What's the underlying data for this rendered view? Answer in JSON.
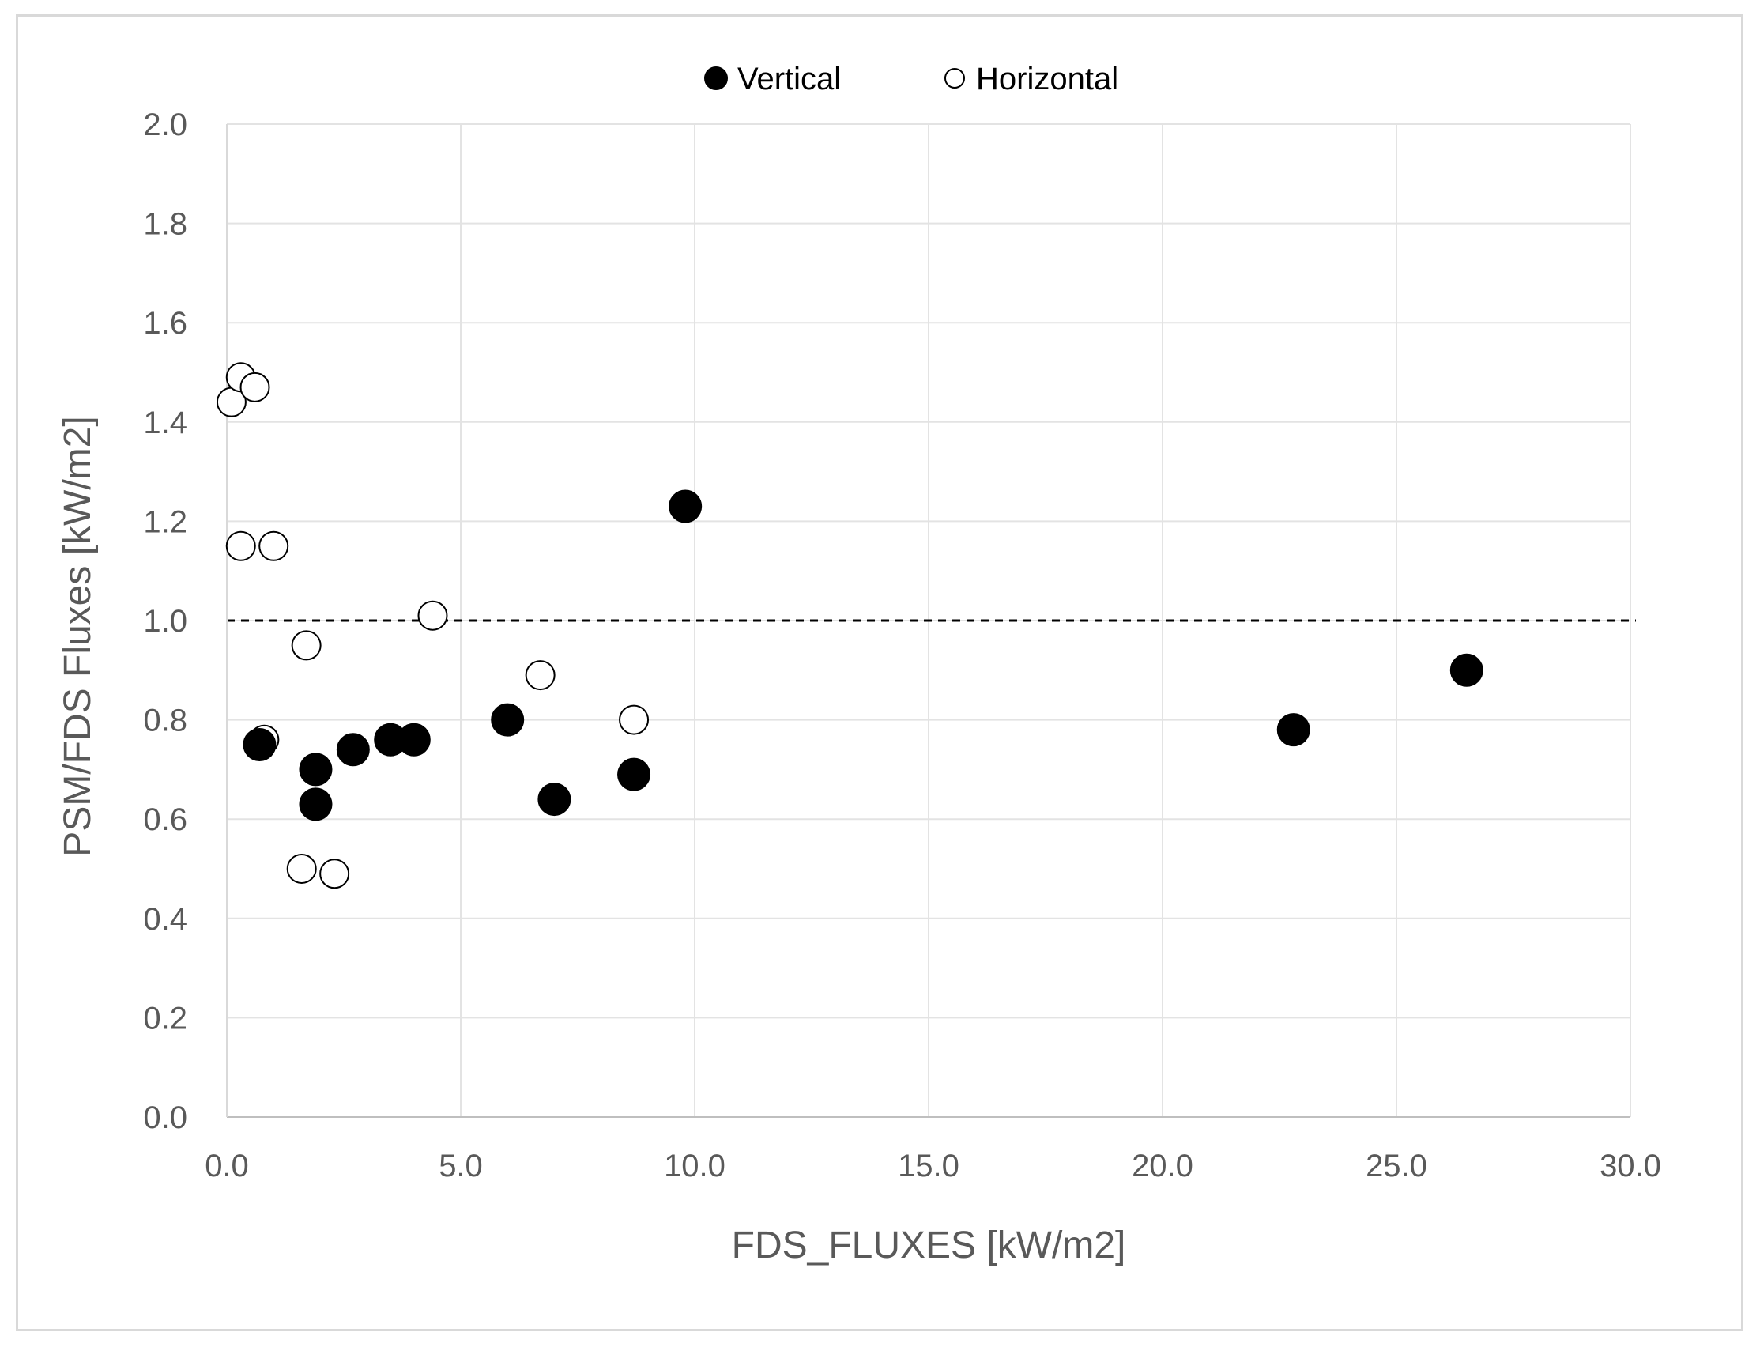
{
  "chart_data": {
    "type": "scatter",
    "title": "",
    "xlabel": "FDS_FLUXES  [kW/m2]",
    "ylabel": "PSM/FDS Fluxes  [kW/m2]",
    "xlim": [
      0,
      30
    ],
    "ylim": [
      0,
      2
    ],
    "x_ticks": [
      "0.0",
      "5.0",
      "10.0",
      "15.0",
      "20.0",
      "25.0",
      "30.0"
    ],
    "y_ticks": [
      "0.0",
      "0.2",
      "0.4",
      "0.6",
      "0.8",
      "1.0",
      "1.2",
      "1.4",
      "1.6",
      "1.8",
      "2.0"
    ],
    "grid": true,
    "legend_position": "top",
    "reference_line": {
      "y": 1.0,
      "style": "dashed",
      "color": "#000000"
    },
    "series": [
      {
        "name": "Vertical",
        "marker": "filled-circle",
        "color": "#000000",
        "points": [
          [
            0.7,
            0.75
          ],
          [
            1.9,
            0.7
          ],
          [
            1.9,
            0.63
          ],
          [
            2.7,
            0.74
          ],
          [
            3.5,
            0.76
          ],
          [
            4.0,
            0.76
          ],
          [
            6.0,
            0.8
          ],
          [
            7.0,
            0.64
          ],
          [
            8.7,
            0.69
          ],
          [
            9.8,
            1.23
          ],
          [
            22.8,
            0.78
          ],
          [
            26.5,
            0.9
          ]
        ]
      },
      {
        "name": "Horizontal",
        "marker": "open-circle",
        "color": "#000000",
        "points": [
          [
            0.1,
            1.44
          ],
          [
            0.3,
            1.49
          ],
          [
            0.6,
            1.47
          ],
          [
            0.3,
            1.15
          ],
          [
            1.0,
            1.15
          ],
          [
            0.8,
            0.76
          ],
          [
            1.7,
            0.95
          ],
          [
            1.6,
            0.5
          ],
          [
            2.3,
            0.49
          ],
          [
            4.4,
            1.01
          ],
          [
            6.7,
            0.89
          ],
          [
            8.7,
            0.8
          ]
        ]
      }
    ]
  }
}
